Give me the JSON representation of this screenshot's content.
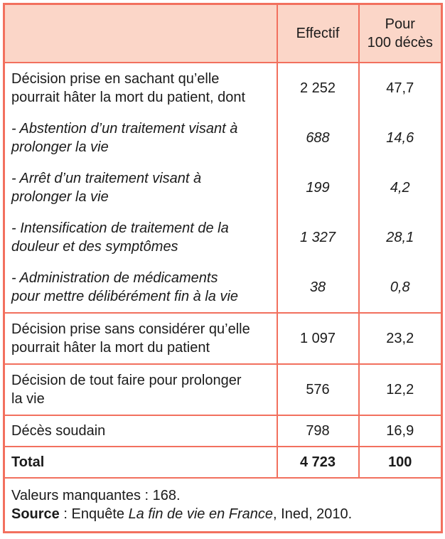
{
  "colors": {
    "border": "#f2705e",
    "header_bg": "#fbd6c8",
    "text": "#1b1b1b",
    "page_bg": "#ffffff"
  },
  "chart_data": {
    "type": "table",
    "title": "",
    "columns": [
      "",
      "Effectif",
      "Pour 100 décès"
    ],
    "rows": [
      [
        "Décision prise en sachant qu’elle pourrait hâter la mort du patient, dont",
        "2 252",
        "47,7"
      ],
      [
        "- Abstention d’un traitement visant à prolonger la vie",
        "688",
        "14,6"
      ],
      [
        "- Arrêt d’un traitement visant à prolonger la vie",
        "199",
        "4,2"
      ],
      [
        "- Intensification de traitement de la douleur et des symptômes",
        "1 327",
        "28,1"
      ],
      [
        "- Administration de médicaments pour mettre délibérément fin à la vie",
        "38",
        "0,8"
      ],
      [
        "Décision prise sans considérer qu’elle pourrait hâter la mort du patient",
        "1 097",
        "23,2"
      ],
      [
        "Décision de tout faire pour prolonger la vie",
        "576",
        "12,2"
      ],
      [
        "Décès soudain",
        "798",
        "16,9"
      ],
      [
        "Total",
        "4 723",
        "100"
      ]
    ],
    "effectif_values": [
      2252,
      688,
      199,
      1327,
      38,
      1097,
      576,
      798,
      4723
    ],
    "pour_100_deces_values": [
      47.7,
      14.6,
      4.2,
      28.1,
      0.8,
      23.2,
      12.2,
      16.9,
      100
    ],
    "notes": [
      "Valeurs manquantes : 168.",
      "Source : Enquête La fin de vie en France, Ined, 2010."
    ]
  },
  "display": {
    "header": {
      "effectif": "Effectif",
      "pour100_lines": [
        "Pour",
        "100 décès"
      ]
    },
    "rows": [
      {
        "lines": [
          "Décision prise en sachant qu’elle",
          "pourrait hâter la mort du patient, dont"
        ],
        "effectif": "2 252",
        "pour100": "47,7"
      },
      {
        "lines": [
          "- Abstention d’un traitement visant à",
          "prolonger la vie"
        ],
        "effectif": "688",
        "pour100": "14,6"
      },
      {
        "lines": [
          "- Arrêt d’un traitement visant à",
          "prolonger la vie"
        ],
        "effectif": "199",
        "pour100": "4,2"
      },
      {
        "lines": [
          "- Intensification de traitement de la",
          "douleur et des symptômes"
        ],
        "effectif": "1 327",
        "pour100": "28,1"
      },
      {
        "lines": [
          "- Administration de médicaments",
          "pour mettre délibérément fin à la vie"
        ],
        "effectif": "38",
        "pour100": "0,8"
      },
      {
        "lines": [
          "Décision prise sans considérer qu’elle",
          "pourrait hâter la mort du patient"
        ],
        "effectif": "1 097",
        "pour100": "23,2"
      },
      {
        "lines": [
          "Décision de tout faire pour prolonger",
          "la vie"
        ],
        "effectif": "576",
        "pour100": "12,2"
      },
      {
        "lines": [
          "Décès soudain"
        ],
        "effectif": "798",
        "pour100": "16,9"
      },
      {
        "lines": [
          "Total"
        ],
        "effectif": "4 723",
        "pour100": "100"
      }
    ],
    "footer": {
      "line1": "Valeurs manquantes : 168.",
      "source_label": "Source",
      "source_mid": " : Enquête ",
      "source_title": "La fin de vie en France",
      "source_end": ", Ined, 2010."
    }
  }
}
